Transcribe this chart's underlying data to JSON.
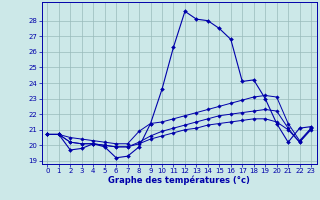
{
  "xlabel": "Graphe des températures (°c)",
  "bg_color": "#cce8e8",
  "line_color": "#0000aa",
  "grid_color": "#99bbbb",
  "xlim": [
    -0.5,
    23.5
  ],
  "ylim": [
    18.8,
    29.2
  ],
  "yticks": [
    19,
    20,
    21,
    22,
    23,
    24,
    25,
    26,
    27,
    28
  ],
  "xticks": [
    0,
    1,
    2,
    3,
    4,
    5,
    6,
    7,
    8,
    9,
    10,
    11,
    12,
    13,
    14,
    15,
    16,
    17,
    18,
    19,
    20,
    21,
    22,
    23
  ],
  "series": [
    {
      "x": [
        0,
        1,
        2,
        3,
        4,
        5,
        6,
        7,
        8,
        9,
        10,
        11,
        12,
        13,
        14,
        15,
        16,
        17,
        18,
        19,
        20,
        21,
        22,
        23
      ],
      "y": [
        20.7,
        20.7,
        19.7,
        19.8,
        20.1,
        19.9,
        19.2,
        19.3,
        19.9,
        21.4,
        23.6,
        26.3,
        28.6,
        28.1,
        28.0,
        27.5,
        26.8,
        24.1,
        24.2,
        23.0,
        21.4,
        20.2,
        21.1,
        21.2
      ]
    },
    {
      "x": [
        0,
        1,
        2,
        3,
        4,
        5,
        6,
        7,
        8,
        9,
        10,
        11,
        12,
        13,
        14,
        15,
        16,
        17,
        18,
        19,
        20,
        21,
        22,
        23
      ],
      "y": [
        20.7,
        20.7,
        20.5,
        20.4,
        20.3,
        20.2,
        20.1,
        20.1,
        20.9,
        21.4,
        21.5,
        21.7,
        21.9,
        22.1,
        22.3,
        22.5,
        22.7,
        22.9,
        23.1,
        23.2,
        23.1,
        21.4,
        20.3,
        21.1
      ]
    },
    {
      "x": [
        0,
        1,
        2,
        3,
        4,
        5,
        6,
        7,
        8,
        9,
        10,
        11,
        12,
        13,
        14,
        15,
        16,
        17,
        18,
        19,
        20,
        21,
        22,
        23
      ],
      "y": [
        20.7,
        20.7,
        20.2,
        20.1,
        20.1,
        20.0,
        19.9,
        19.9,
        20.2,
        20.6,
        20.9,
        21.1,
        21.3,
        21.5,
        21.7,
        21.9,
        22.0,
        22.1,
        22.2,
        22.3,
        22.2,
        21.1,
        20.2,
        21.0
      ]
    },
    {
      "x": [
        0,
        1,
        2,
        3,
        4,
        5,
        6,
        7,
        8,
        9,
        10,
        11,
        12,
        13,
        14,
        15,
        16,
        17,
        18,
        19,
        20,
        21,
        22,
        23
      ],
      "y": [
        20.7,
        20.7,
        20.2,
        20.1,
        20.1,
        20.0,
        19.9,
        19.9,
        20.1,
        20.4,
        20.6,
        20.8,
        21.0,
        21.1,
        21.3,
        21.4,
        21.5,
        21.6,
        21.7,
        21.7,
        21.5,
        21.0,
        20.2,
        21.1
      ]
    }
  ]
}
